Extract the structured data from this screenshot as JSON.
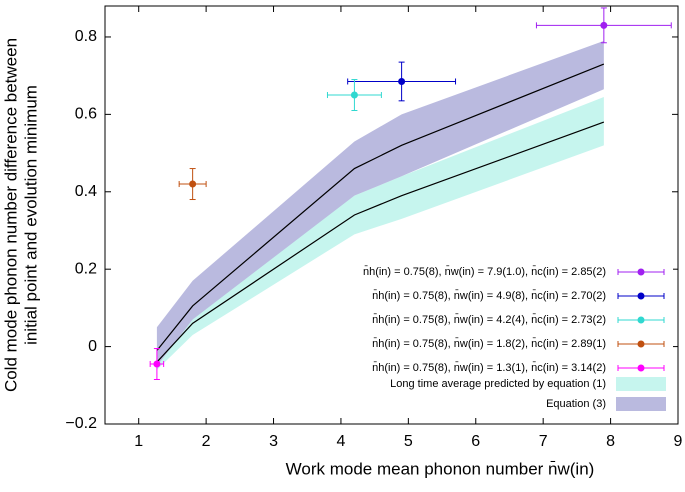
{
  "chart_data": {
    "type": "errorbar",
    "x_label": "Work mode mean phonon number n̄w(in)",
    "y_label": [
      "Cold mode phonon number difference between",
      "initial point and evolution minimum"
    ],
    "xlim": [
      0.5,
      9
    ],
    "ylim": [
      -0.2,
      0.88
    ],
    "xticks": [
      1,
      2,
      3,
      4,
      5,
      6,
      7,
      8,
      9
    ],
    "yticks": [
      {
        "value": -0.2,
        "label": "−0.2"
      },
      0,
      0.2,
      0.4,
      0.6,
      0.8
    ],
    "series": [
      {
        "name": "n̄h(in) = 0.75(8),  n̄w(in) = 7.9(1.0),  n̄c(in) = 2.85(2)",
        "color": "#a020f0",
        "x": [
          7.9
        ],
        "values": [
          0.83
        ],
        "xerr": [
          1.0
        ],
        "yerr": [
          0.045
        ]
      },
      {
        "name": "n̄h(in) = 0.75(8),  n̄w(in) = 4.9(8),  n̄c(in) = 2.70(2)",
        "color": "#0000c8",
        "x": [
          4.9
        ],
        "values": [
          0.685
        ],
        "xerr": [
          0.8
        ],
        "yerr": [
          0.05
        ]
      },
      {
        "name": "n̄h(in) = 0.75(8),  n̄w(in) = 4.2(4),  n̄c(in) = 2.73(2)",
        "color": "#30d8d0",
        "x": [
          4.2
        ],
        "values": [
          0.65
        ],
        "xerr": [
          0.4
        ],
        "yerr": [
          0.04
        ]
      },
      {
        "name": "n̄h(in) = 0.75(8),  n̄w(in) = 1.8(2),  n̄c(in) = 2.89(1)",
        "color": "#c05010",
        "x": [
          1.8
        ],
        "values": [
          0.42
        ],
        "xerr": [
          0.2
        ],
        "yerr": [
          0.04
        ]
      },
      {
        "name": "n̄h(in) = 0.75(8),  n̄w(in) = 1.3(1),  n̄c(in) = 3.14(2)",
        "color": "#ff00ff",
        "x": [
          1.27
        ],
        "values": [
          -0.045
        ],
        "xerr": [
          0.1
        ],
        "yerr": [
          0.04
        ]
      }
    ],
    "bands": [
      {
        "name": "Long time average predicted by equation (1)",
        "color": "#c6f5ee",
        "x": [
          1.27,
          1.8,
          4.2,
          4.9,
          7.9
        ],
        "values": [
          -0.04,
          0.06,
          0.34,
          0.39,
          0.58
        ],
        "lower": [
          -0.06,
          0.03,
          0.29,
          0.33,
          0.52
        ],
        "upper": [
          -0.02,
          0.09,
          0.39,
          0.44,
          0.645
        ]
      },
      {
        "name": "Equation (3)",
        "color": "#babadf",
        "x": [
          1.27,
          1.8,
          4.2,
          4.9,
          7.9
        ],
        "values": [
          -0.01,
          0.105,
          0.46,
          0.52,
          0.73
        ],
        "lower": [
          -0.05,
          0.07,
          0.39,
          0.44,
          0.665
        ],
        "upper": [
          0.05,
          0.17,
          0.53,
          0.6,
          0.79
        ]
      }
    ]
  }
}
